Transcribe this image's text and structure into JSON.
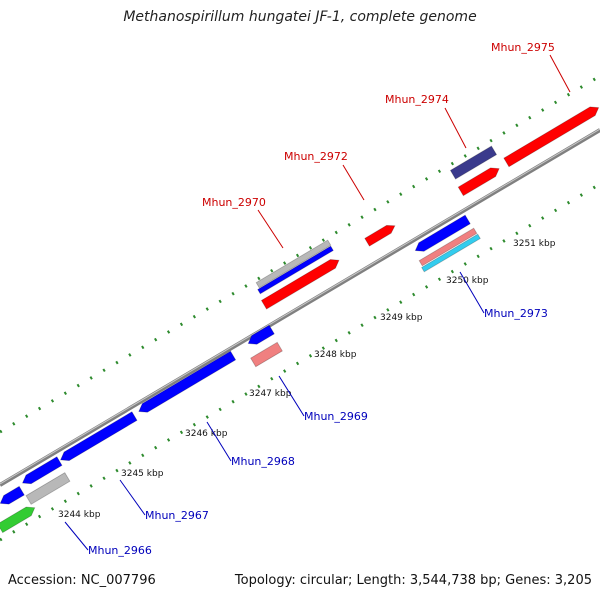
{
  "title": "Methanospirillum hungatei JF-1, complete genome",
  "footer": {
    "accession": "Accession: NC_007796",
    "summary": "Topology: circular; Length: 3,544,738 bp; Genes: 3,205"
  },
  "colors": {
    "backbone": "#808080",
    "dots": "#2e8b2e",
    "label_forward": "#cc0000",
    "label_reverse": "#0000bb",
    "red": "#ff0000",
    "blue": "#0000ff",
    "gray": "#b8b8b8",
    "green": "#33cc33",
    "pink": "#f08080",
    "cyan": "#33ccee",
    "navy": "#3a3a8c"
  },
  "ticks": [
    "3244 kbp",
    "3245 kbp",
    "3246 kbp",
    "3247 kbp",
    "3248 kbp",
    "3249 kbp",
    "3250 kbp",
    "3251 kbp"
  ],
  "gene_labels": {
    "forward": [
      "Mhun_2970",
      "Mhun_2972",
      "Mhun_2974",
      "Mhun_2975"
    ],
    "reverse": [
      "Mhun_2966",
      "Mhun_2967",
      "Mhun_2968",
      "Mhun_2969",
      "Mhun_2973"
    ]
  }
}
